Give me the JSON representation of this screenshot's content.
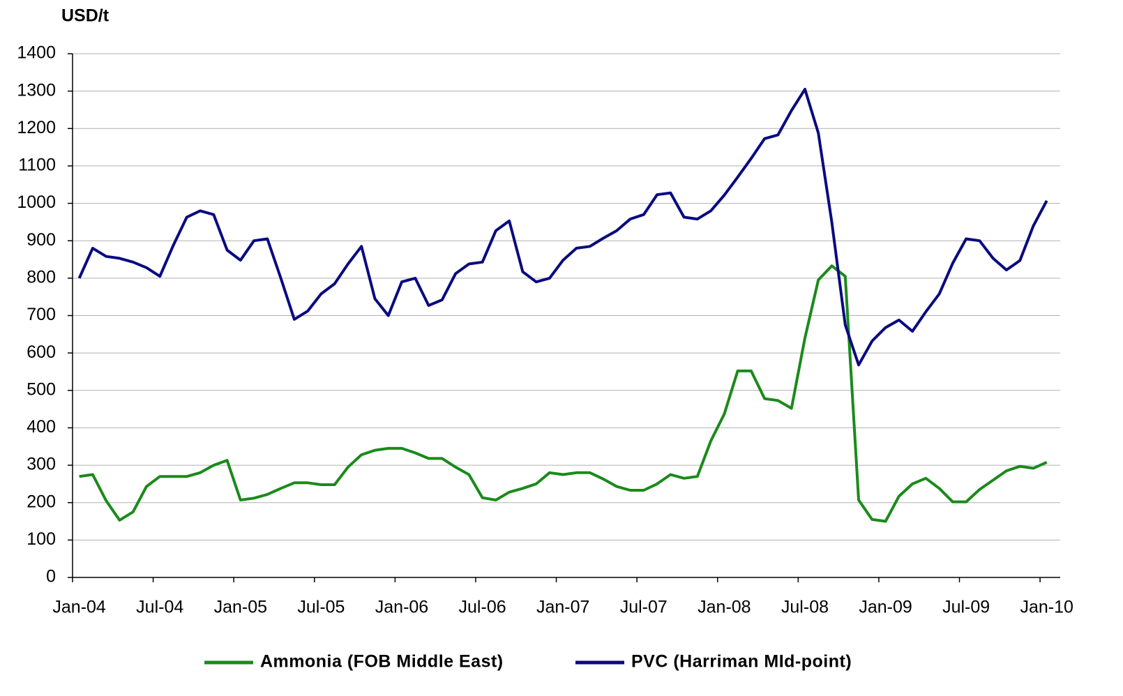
{
  "chart_data": {
    "type": "line",
    "ylabel": "USD/t",
    "categories": [
      "Jan-04",
      null,
      null,
      null,
      null,
      null,
      "Jul-04",
      null,
      null,
      null,
      null,
      null,
      "Jan-05",
      null,
      null,
      null,
      null,
      null,
      "Jul-05",
      null,
      null,
      null,
      null,
      null,
      "Jan-06",
      null,
      null,
      null,
      null,
      null,
      "Jul-06",
      null,
      null,
      null,
      null,
      null,
      "Jan-07",
      null,
      null,
      null,
      null,
      null,
      "Jul-07",
      null,
      null,
      null,
      null,
      null,
      "Jan-08",
      null,
      null,
      null,
      null,
      null,
      "Jul-08",
      null,
      null,
      null,
      null,
      null,
      "Jan-09",
      null,
      null,
      null,
      null,
      null,
      "Jul-09",
      null,
      null,
      null,
      null,
      null,
      "Jan-10"
    ],
    "series": [
      {
        "name": "Ammonia (FOB Middle East)",
        "color": "#1a8a1a",
        "values": [
          270,
          275,
          205,
          153,
          175,
          243,
          270,
          270,
          270,
          280,
          300,
          313,
          207,
          212,
          222,
          238,
          253,
          253,
          248,
          248,
          295,
          328,
          340,
          345,
          345,
          333,
          318,
          318,
          295,
          275,
          213,
          207,
          228,
          238,
          250,
          280,
          275,
          280,
          280,
          263,
          243,
          233,
          233,
          250,
          275,
          265,
          270,
          365,
          437,
          552,
          552,
          478,
          473,
          452,
          640,
          795,
          833,
          805,
          207,
          155,
          150,
          217,
          250,
          265,
          238,
          202,
          202,
          235,
          260,
          285,
          297,
          292,
          308
        ]
      },
      {
        "name": "PVC (Harriman MId-point)",
        "color": "#0a0a80",
        "values": [
          800,
          880,
          858,
          853,
          843,
          828,
          805,
          888,
          963,
          980,
          970,
          875,
          848,
          900,
          905,
          800,
          690,
          712,
          758,
          785,
          838,
          885,
          745,
          700,
          790,
          800,
          727,
          742,
          812,
          838,
          843,
          927,
          953,
          817,
          790,
          800,
          848,
          880,
          885,
          907,
          927,
          958,
          970,
          1023,
          1028,
          963,
          958,
          980,
          1022,
          1070,
          1120,
          1173,
          1183,
          1248,
          1305,
          1188,
          950,
          675,
          568,
          632,
          668,
          688,
          658,
          710,
          758,
          840,
          905,
          900,
          853,
          822,
          847,
          940,
          1007
        ]
      }
    ],
    "ylim": [
      0,
      1400
    ],
    "yticks": [
      0,
      100,
      200,
      300,
      400,
      500,
      600,
      700,
      800,
      900,
      1000,
      1100,
      1200,
      1300,
      1400
    ],
    "grid": true,
    "legend": "bottom"
  }
}
